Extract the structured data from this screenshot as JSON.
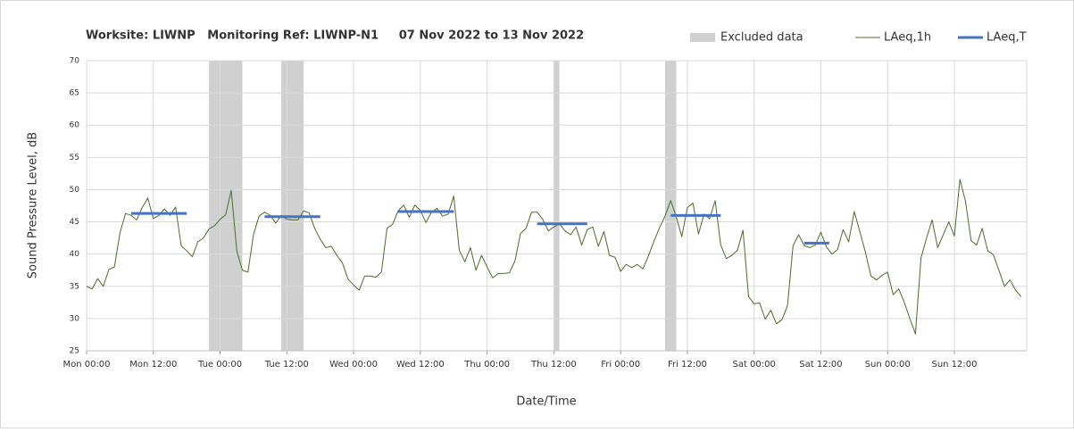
{
  "chart_data": {
    "type": "line",
    "title": "Worksite: LIWNP   Monitoring Ref: LIWNP-N1     07 Nov 2022 to 13 Nov 2022",
    "x_label": "Date/Time",
    "y_label": "Sound Pressure Level, dB",
    "xlim": [
      0,
      169
    ],
    "xticks": [
      {
        "value": 0,
        "label": "Mon 00:00"
      },
      {
        "value": 12,
        "label": "Mon 12:00"
      },
      {
        "value": 24,
        "label": "Tue 00:00"
      },
      {
        "value": 36,
        "label": "Tue 12:00"
      },
      {
        "value": 48,
        "label": "Wed 00:00"
      },
      {
        "value": 60,
        "label": "Wed 12:00"
      },
      {
        "value": 72,
        "label": "Thu 00:00"
      },
      {
        "value": 84,
        "label": "Thu 12:00"
      },
      {
        "value": 96,
        "label": "Fri 00:00"
      },
      {
        "value": 108,
        "label": "Fri 12:00"
      },
      {
        "value": 120,
        "label": "Sat 00:00"
      },
      {
        "value": 132,
        "label": "Sat 12:00"
      },
      {
        "value": 144,
        "label": "Sun 00:00"
      },
      {
        "value": 156,
        "label": "Sun 12:00"
      }
    ],
    "ylim": [
      25,
      70
    ],
    "yticks": [
      25,
      30,
      35,
      40,
      45,
      50,
      55,
      60,
      65,
      70
    ],
    "grid": true,
    "legend": "top-right",
    "excluded": {
      "name": "Excluded data",
      "color": "#d0d0d0",
      "ranges": [
        [
          22,
          28
        ],
        [
          35,
          39
        ],
        [
          84,
          85
        ],
        [
          104,
          106
        ]
      ]
    },
    "series": [
      {
        "name": "LAeq,1h",
        "color": "#4e6b2e",
        "width": 1,
        "x": [
          0,
          1,
          2,
          3,
          4,
          5,
          6,
          7,
          8,
          9,
          10,
          11,
          12,
          13,
          14,
          15,
          16,
          17,
          18,
          19,
          20,
          21,
          22,
          23,
          24,
          25,
          26,
          27,
          28,
          29,
          30,
          31,
          32,
          33,
          34,
          35,
          36,
          37,
          38,
          39,
          40,
          41,
          42,
          43,
          44,
          45,
          46,
          47,
          48,
          49,
          50,
          51,
          52,
          53,
          54,
          55,
          56,
          57,
          58,
          59,
          60,
          61,
          62,
          63,
          64,
          65,
          66,
          67,
          68,
          69,
          70,
          71,
          72,
          73,
          74,
          75,
          76,
          77,
          78,
          79,
          80,
          81,
          82,
          83,
          84,
          85,
          86,
          87,
          88,
          89,
          90,
          91,
          92,
          93,
          94,
          95,
          96,
          97,
          98,
          99,
          100,
          101,
          102,
          103,
          104,
          105,
          106,
          107,
          108,
          109,
          110,
          111,
          112,
          113,
          114,
          115,
          116,
          117,
          118,
          119,
          120,
          121,
          122,
          123,
          124,
          125,
          126,
          127,
          128,
          129,
          130,
          131,
          132,
          133,
          134,
          135,
          136,
          137,
          138,
          139,
          140,
          141,
          142,
          143,
          144,
          145,
          146,
          147,
          148,
          149,
          150,
          151,
          152,
          153,
          154,
          155,
          156,
          157,
          158,
          159,
          160,
          161,
          162,
          163,
          164,
          165,
          166,
          167,
          168
        ],
        "values": [
          35,
          34.6,
          36.2,
          35,
          37.6,
          38,
          43.3,
          46.3,
          46,
          45.3,
          47.2,
          48.7,
          45.5,
          46,
          47,
          46,
          47.3,
          41.3,
          40.5,
          39.6,
          41.9,
          42.5,
          43.9,
          44.4,
          45.4,
          46.1,
          49.9,
          40.5,
          37.5,
          37.2,
          43,
          45.9,
          46.5,
          46,
          44.8,
          46,
          45.4,
          45.3,
          45.3,
          46.7,
          46.4,
          44,
          42.3,
          41,
          41.2,
          39.8,
          38.6,
          36.1,
          35.2,
          34.4,
          36.6,
          36.6,
          36.4,
          37.2,
          44,
          44.6,
          46.7,
          47.6,
          45.7,
          47.6,
          46.8,
          44.9,
          46.5,
          47.1,
          45.9,
          46.2,
          49,
          40.6,
          38.8,
          41,
          37.5,
          39.8,
          38,
          36.3,
          37,
          37,
          37.1,
          38.9,
          43.2,
          44,
          46.5,
          46.5,
          45.4,
          43.6,
          44.2,
          44.7,
          43.6,
          43,
          44.2,
          41.4,
          43.8,
          44.2,
          41.2,
          43.5,
          39.8,
          39.5,
          37.3,
          38.4,
          37.9,
          38.4,
          37.7,
          39.7,
          42,
          44.1,
          45.9,
          48.3,
          45.8,
          42.7,
          47.2,
          47.9,
          43.1,
          46.2,
          45.5,
          48.3,
          41.4,
          39.3,
          39.8,
          40.6,
          43.7,
          33.4,
          32.3,
          32.4,
          29.9,
          31.3,
          29.2,
          29.8,
          32,
          41.3,
          43,
          41.3,
          41,
          41.4,
          43.4,
          41.1,
          40,
          40.7,
          43.8,
          41.9,
          46.6,
          43.5,
          40.3,
          36.6,
          36,
          36.7,
          37.2,
          33.7,
          34.6,
          32.5,
          30,
          27.6,
          39.4,
          42.5,
          45.3,
          41,
          43,
          45,
          42.8,
          51.6,
          48.2,
          42.1,
          41.4,
          44,
          40.5,
          39.9,
          37.5,
          35,
          36,
          34.4,
          33.4
        ]
      },
      {
        "name": "LAeq,T",
        "color": "#4472c4",
        "width": 3,
        "x": [
          8,
          18,
          25,
          32,
          42,
          50,
          56,
          66,
          74,
          81,
          90,
          98,
          105,
          114,
          120,
          129,
          133.5
        ],
        "values": [
          46.3,
          46.3,
          null,
          45.8,
          45.8,
          null,
          46.6,
          46.6,
          null,
          44.7,
          44.7,
          null,
          46,
          46,
          null,
          41.7,
          41.7
        ]
      }
    ]
  }
}
